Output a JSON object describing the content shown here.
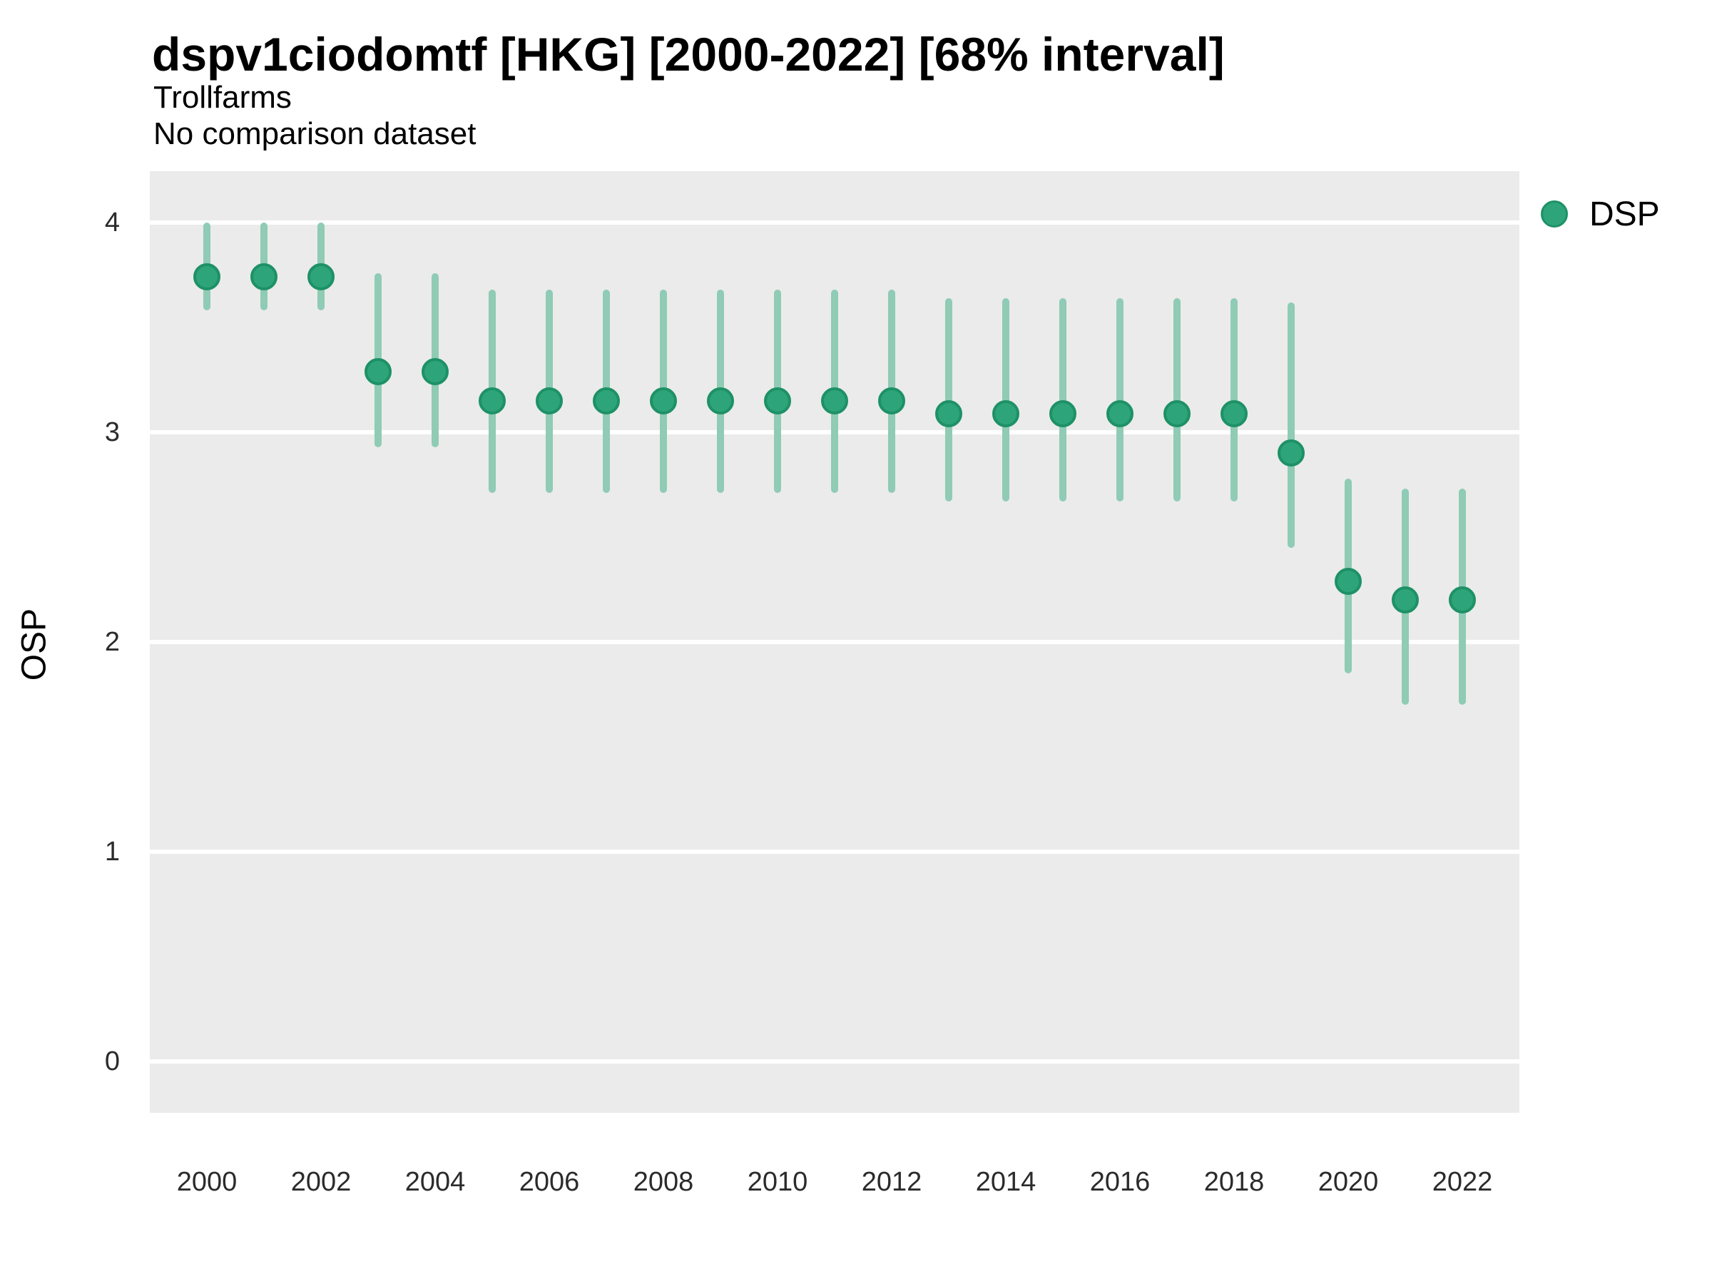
{
  "header": {
    "title": "dspv1ciodomtf [HKG] [2000-2022] [68% interval]",
    "subtitle": "Trollfarms",
    "comparison_note": "No comparison dataset"
  },
  "y_axis": {
    "label": "OSP",
    "ticks": [
      4,
      3,
      2,
      1,
      0
    ]
  },
  "x_axis": {
    "ticks": [
      2000,
      2002,
      2004,
      2006,
      2008,
      2010,
      2012,
      2014,
      2016,
      2018,
      2020,
      2022
    ]
  },
  "legend": {
    "series_label": "DSP",
    "position": "right-top"
  },
  "colors": {
    "point_fill": "#2EA47A",
    "point_border": "#1E9166",
    "interval_bar": "#8FCBB5",
    "plot_background": "#EBEBEB",
    "gridline": "#FFFFFF",
    "text": "#000000",
    "tick_text": "#2B2B2B"
  },
  "chart_data": {
    "type": "scatter",
    "title": "dspv1ciodomtf [HKG] [2000-2022] [68% interval]",
    "subtitle": "Trollfarms",
    "note": "No comparison dataset",
    "xlabel": "",
    "ylabel": "OSP",
    "xlim": [
      1999,
      2023
    ],
    "ylim": [
      -0.25,
      4.25
    ],
    "grid": "major-horizontal-white-on-gray",
    "legend_position": "right-top",
    "interval_level": "68%",
    "series": [
      {
        "name": "DSP",
        "x": [
          2000,
          2001,
          2002,
          2003,
          2004,
          2005,
          2006,
          2007,
          2008,
          2009,
          2010,
          2011,
          2012,
          2013,
          2014,
          2015,
          2016,
          2017,
          2018,
          2019,
          2020,
          2021,
          2022
        ],
        "y": [
          3.74,
          3.74,
          3.74,
          3.29,
          3.29,
          3.15,
          3.15,
          3.15,
          3.15,
          3.15,
          3.15,
          3.15,
          3.15,
          3.09,
          3.09,
          3.09,
          3.09,
          3.09,
          3.09,
          2.9,
          2.29,
          2.2,
          2.2
        ],
        "y_lower": [
          3.58,
          3.58,
          3.58,
          2.93,
          2.93,
          2.71,
          2.71,
          2.71,
          2.71,
          2.71,
          2.71,
          2.71,
          2.71,
          2.67,
          2.67,
          2.67,
          2.67,
          2.67,
          2.67,
          2.45,
          1.85,
          1.7,
          1.7
        ],
        "y_upper": [
          4.0,
          4.0,
          4.0,
          3.76,
          3.76,
          3.68,
          3.68,
          3.68,
          3.68,
          3.68,
          3.68,
          3.68,
          3.68,
          3.64,
          3.64,
          3.64,
          3.64,
          3.64,
          3.64,
          3.62,
          2.78,
          2.73,
          2.73
        ]
      }
    ]
  }
}
